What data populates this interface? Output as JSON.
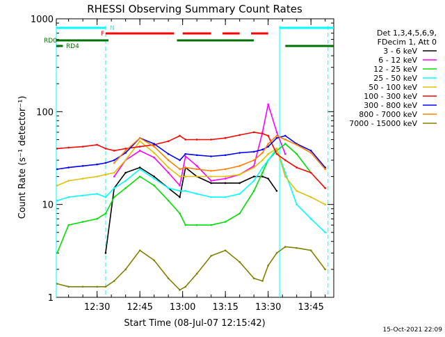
{
  "chart_data": {
    "type": "line",
    "title": "RHESSI Observing Summary Count Rates",
    "xlabel": "Start Time (08-Jul-07 12:15:42)",
    "ylabel": "Count Rate (s⁻¹ detector⁻¹)",
    "x_axis": {
      "unit": "time",
      "range": [
        "12:15:42",
        "13:53:00"
      ],
      "ticks": [
        "12:30",
        "12:45",
        "13:00",
        "13:15",
        "13:30",
        "13:45"
      ]
    },
    "y_axis": {
      "scale": "log",
      "range": [
        1,
        1000
      ],
      "ticks": [
        "1",
        "10",
        "100",
        "1000"
      ]
    },
    "legend": {
      "position": "right",
      "header": [
        "Det 1,3,4,5,6,9,",
        "FDecim 1, Att 0"
      ],
      "entries": [
        {
          "label": "3 - 6 keV",
          "color": "#000000"
        },
        {
          "label": "6 - 12 keV",
          "color": "#ff00ff"
        },
        {
          "label": "12 - 25 keV",
          "color": "#00e000"
        },
        {
          "label": "25 - 50 keV",
          "color": "#00ffff"
        },
        {
          "label": "50 - 100 keV",
          "color": "#e0c000"
        },
        {
          "label": "100 - 300 keV",
          "color": "#ff0000"
        },
        {
          "label": "300 - 800 keV",
          "color": "#0000ff"
        },
        {
          "label": "800 - 7000 keV",
          "color": "#ff8000"
        },
        {
          "label": "7000 - 15000 keV",
          "color": "#808000"
        }
      ]
    },
    "flags": [
      {
        "label": "N",
        "color": "#00ffff",
        "segments": [
          [
            "12:15:42",
            "12:33:00"
          ],
          [
            "13:34:00",
            "13:53:00"
          ]
        ]
      },
      {
        "label": "F",
        "color": "#ff0000",
        "segments": [
          [
            "12:33:00",
            "12:57:00"
          ],
          [
            "13:00:00",
            "13:10:00"
          ],
          [
            "13:14:00",
            "13:20:00"
          ],
          [
            "13:24:00",
            "13:30:00"
          ]
        ]
      },
      {
        "label": "RD0",
        "color": "#007000",
        "segments": [
          [
            "12:15:42",
            "12:34:00"
          ],
          [
            "12:58:00",
            "13:25:00"
          ]
        ]
      },
      {
        "label": "RD4",
        "color": "#007000",
        "segments": [
          [
            "12:15:42",
            "12:18:00"
          ],
          [
            "13:36:00",
            "13:53:00"
          ]
        ]
      }
    ],
    "vertical_lines": [
      {
        "time": "12:15:42",
        "style": "solid",
        "color": "#00ffff"
      },
      {
        "time": "12:33:00",
        "style": "dashed",
        "color": "#00ffff"
      },
      {
        "time": "13:34:00",
        "style": "solid",
        "color": "#00ffff"
      },
      {
        "time": "13:51:00",
        "style": "dashed",
        "color": "#00ffff"
      }
    ],
    "x": [
      "12:16",
      "12:20",
      "12:25",
      "12:30",
      "12:33",
      "12:36",
      "12:40",
      "12:45",
      "12:50",
      "12:55",
      "12:59",
      "13:01",
      "13:05",
      "13:10",
      "13:15",
      "13:20",
      "13:25",
      "13:28",
      "13:30",
      "13:33",
      "13:36",
      "13:40",
      "13:45",
      "13:50"
    ],
    "series": [
      {
        "name": "3 - 6 keV",
        "color": "#000000",
        "values": [
          null,
          null,
          null,
          null,
          3.0,
          15,
          22,
          25,
          20,
          15,
          12,
          25,
          20,
          17,
          17,
          17,
          20,
          20,
          19,
          14,
          null,
          null,
          null,
          null
        ]
      },
      {
        "name": "6 - 12 keV",
        "color": "#ff00ff",
        "values": [
          null,
          null,
          null,
          null,
          null,
          20,
          30,
          38,
          32,
          22,
          16,
          33,
          26,
          18,
          19,
          21,
          26,
          60,
          120,
          60,
          35,
          null,
          null,
          null
        ]
      },
      {
        "name": "12 - 25 keV",
        "color": "#00e000",
        "values": [
          3.0,
          6.0,
          6.5,
          7.0,
          8.0,
          12,
          15,
          20,
          16,
          11,
          8,
          6,
          6,
          6,
          6.5,
          8,
          14,
          22,
          30,
          38,
          45,
          35,
          22,
          null
        ]
      },
      {
        "name": "25 - 50 keV",
        "color": "#00ffff",
        "values": [
          11,
          12,
          12.5,
          13,
          12,
          15,
          18,
          24,
          19,
          15,
          14,
          14,
          13,
          12,
          12,
          13,
          18,
          25,
          30,
          40,
          22,
          10,
          7,
          5
        ]
      },
      {
        "name": "50 - 100 keV",
        "color": "#e0c000",
        "values": [
          16,
          18,
          19,
          20,
          21,
          22,
          30,
          48,
          36,
          25,
          20,
          20,
          20,
          20,
          20,
          21,
          25,
          30,
          35,
          40,
          20,
          14,
          12,
          10
        ]
      },
      {
        "name": "100 - 300 keV",
        "color": "#ff0000",
        "values": [
          40,
          41,
          42,
          44,
          40,
          38,
          40,
          42,
          44,
          48,
          55,
          50,
          50,
          50,
          52,
          56,
          60,
          58,
          55,
          35,
          30,
          25,
          22,
          15
        ]
      },
      {
        "name": "300 - 800 keV",
        "color": "#0000ff",
        "values": [
          24,
          25,
          26,
          27,
          28,
          30,
          36,
          52,
          45,
          35,
          30,
          35,
          34,
          33,
          34,
          36,
          37,
          39,
          42,
          52,
          55,
          45,
          38,
          25
        ]
      },
      {
        "name": "800 - 7000 keV",
        "color": "#ff8000",
        "values": [
          null,
          null,
          null,
          null,
          null,
          28,
          38,
          52,
          42,
          30,
          24,
          25,
          24,
          23,
          24,
          26,
          30,
          36,
          45,
          55,
          50,
          44,
          36,
          24
        ]
      },
      {
        "name": "7000 - 15000 keV",
        "color": "#808000",
        "values": [
          1.4,
          1.3,
          1.3,
          1.3,
          1.3,
          1.5,
          2.0,
          3.2,
          2.5,
          1.6,
          1.2,
          1.3,
          1.8,
          2.8,
          3.2,
          2.4,
          1.6,
          1.5,
          2.2,
          3.0,
          3.5,
          3.4,
          3.2,
          2.0
        ]
      }
    ]
  },
  "footer": {
    "timestamp": "15-Oct-2021 22:09"
  }
}
